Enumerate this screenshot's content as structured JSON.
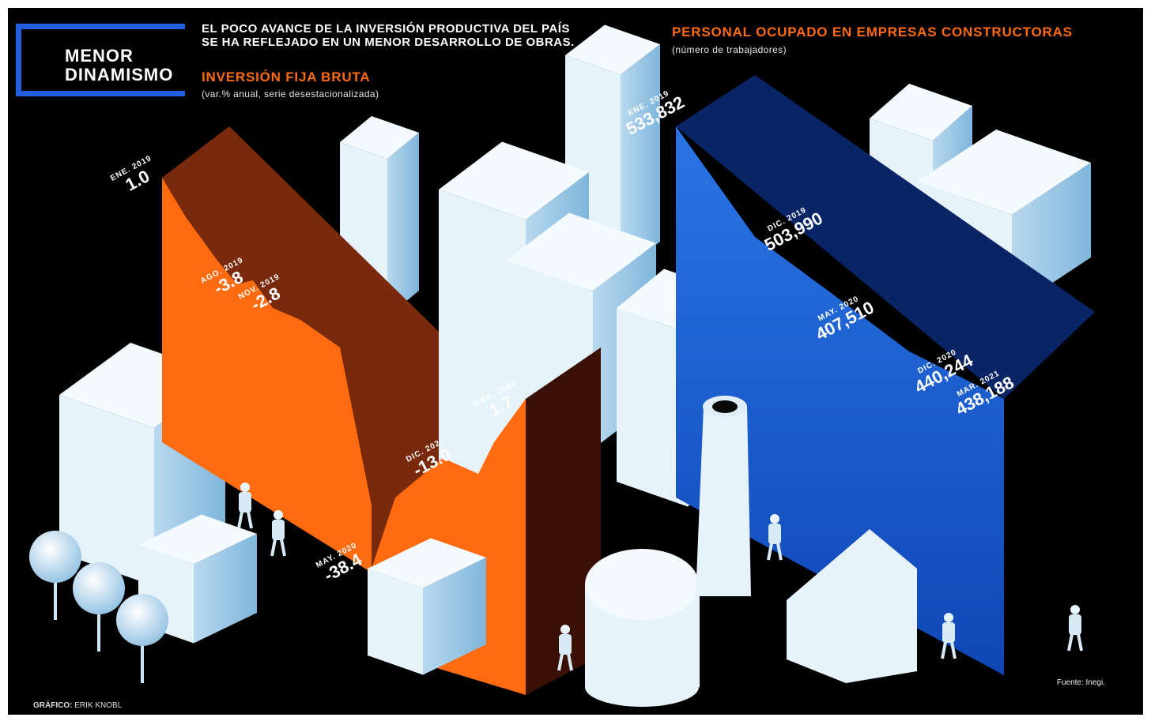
{
  "header": {
    "box_line1": "MENOR",
    "box_line2": "DINAMISMO",
    "lead_line1": "EL POCO AVANCE DE LA INVERSIÓN PRODUCTIVA DEL PAÍS",
    "lead_line2": "SE HA REFLEJADO EN UN MENOR DESARROLLO DE OBRAS."
  },
  "colors": {
    "background": "#000000",
    "accent_blue": "#1f5fe0",
    "investment_orange": "#ff6b10",
    "investment_shade": "#7a2a0c",
    "employment_blue": "#1a60d8",
    "employment_shade": "#0a2566",
    "buildings": "#e6f3fb"
  },
  "chart_data": [
    {
      "type": "area",
      "title": "INVERSIÓN FIJA BRUTA",
      "subtitle": "(var.% anual, serie desestacionalizada)",
      "series": [
        {
          "x": [
            "ENE. 2019",
            "AGO. 2019",
            "NOV. 2019",
            "MAY. 2020",
            "DIC. 2020",
            "MAR. 2021"
          ],
          "values": [
            1.0,
            -3.8,
            -2.8,
            -38.4,
            -13.0,
            1.7
          ]
        }
      ],
      "labels": [
        {
          "date": "ENE. 2019",
          "value": "1.0"
        },
        {
          "date": "AGO. 2019",
          "value": "-3.8"
        },
        {
          "date": "NOV. 2019",
          "value": "-2.8"
        },
        {
          "date": "MAY. 2020",
          "value": "-38.4"
        },
        {
          "date": "DIC. 2020",
          "value": "-13.0"
        },
        {
          "date": "MAR. 2021",
          "value": "1.7"
        }
      ]
    },
    {
      "type": "area",
      "title": "PERSONAL OCUPADO EN EMPRESAS CONSTRUCTORAS",
      "subtitle": "(número de trabajadores)",
      "series": [
        {
          "x": [
            "ENE. 2019",
            "DIC. 2019",
            "MAY. 2020",
            "DIC. 2020",
            "MAR. 2021"
          ],
          "values": [
            533832,
            503990,
            407510,
            440244,
            438188
          ]
        }
      ],
      "labels": [
        {
          "date": "ENE. 2019",
          "value": "533,832"
        },
        {
          "date": "DIC. 2019",
          "value": "503,990"
        },
        {
          "date": "MAY. 2020",
          "value": "407,510"
        },
        {
          "date": "DIC. 2020",
          "value": "440,244"
        },
        {
          "date": "MAR. 2021",
          "value": "438,188"
        }
      ]
    }
  ],
  "footer": {
    "credit_label": "GRÁFICO:",
    "credit_name": "ERIK KNOBL",
    "source": "Fuente: Inegi."
  }
}
